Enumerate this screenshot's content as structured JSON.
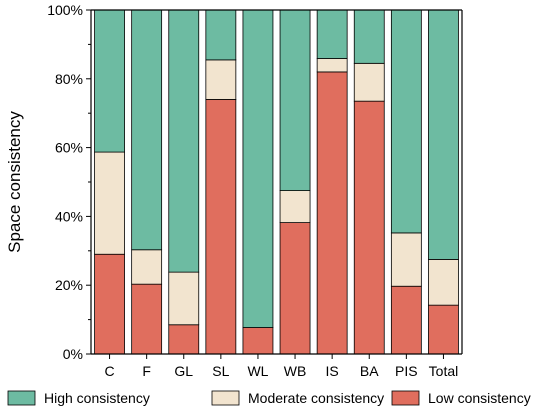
{
  "chart_data": {
    "type": "bar",
    "stacked": true,
    "ylabel": "Space consistency",
    "xlabel": "",
    "ylim": [
      0,
      100
    ],
    "y_ticks": [
      "0%",
      "20%",
      "40%",
      "60%",
      "80%",
      "100%"
    ],
    "categories": [
      "C",
      "F",
      "GL",
      "SL",
      "WL",
      "WB",
      "IS",
      "BA",
      "PIS",
      "Total"
    ],
    "series": [
      {
        "name": "Low consistency",
        "color": "#e06e5e",
        "values": [
          29,
          20.3,
          8.5,
          74,
          7.7,
          38.2,
          82,
          73.5,
          19.7,
          14.2
        ]
      },
      {
        "name": "Moderate consistency",
        "color": "#f2e4cf",
        "values": [
          29.7,
          10,
          15.3,
          11.5,
          0,
          9.3,
          3.9,
          11,
          15.5,
          13.3
        ]
      },
      {
        "name": "High consistency",
        "color": "#6dbba2",
        "values": [
          41.3,
          69.7,
          76.2,
          14.5,
          92.3,
          52.5,
          14.1,
          15.5,
          64.8,
          72.5
        ]
      }
    ],
    "legend": {
      "placement": "bottom",
      "order": [
        "High consistency",
        "Moderate consistency",
        "Low consistency"
      ]
    }
  }
}
